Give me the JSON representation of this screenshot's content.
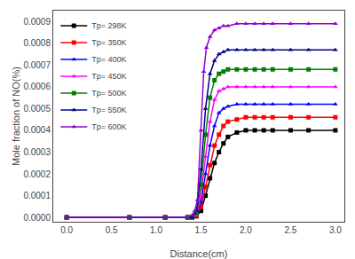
{
  "chart_data": {
    "type": "line",
    "xlabel": "Distance(cm)",
    "ylabel": "Mole fraction of NO(%)",
    "xlim": [
      -0.15,
      3.1
    ],
    "ylim": [
      -2e-05,
      0.00095
    ],
    "xticks": [
      {
        "value": 0.0,
        "label": "0.0"
      },
      0.5,
      {
        "value": 1.0,
        "label": "1.0"
      },
      1.5,
      {
        "value": 2.0,
        "label": "2.0"
      },
      2.5,
      {
        "value": 3.0,
        "label": "3.0"
      }
    ],
    "yticks": [
      {
        "value": 0.0,
        "label": "0.0000"
      },
      {
        "value": 0.0001,
        "label": "0.0001"
      },
      {
        "value": 0.0002,
        "label": "0.0002"
      },
      {
        "value": 0.0003,
        "label": "0.0003"
      },
      {
        "value": 0.0004,
        "label": "0.0004"
      },
      {
        "value": 0.0005,
        "label": "0.0005"
      },
      {
        "value": 0.0006,
        "label": "0.0006"
      },
      {
        "value": 0.0007,
        "label": "0.0007"
      },
      {
        "value": 0.0008,
        "label": "0.0008"
      },
      {
        "value": 0.0009,
        "label": "0.0009"
      }
    ],
    "grid": false,
    "legend": "upper left",
    "series": [
      {
        "name": "Tp= 298K",
        "color": "#000000",
        "marker": "square",
        "x": [
          0.0,
          0.7,
          1.1,
          1.35,
          1.4,
          1.45,
          1.5,
          1.55,
          1.6,
          1.65,
          1.7,
          1.75,
          1.8,
          1.9,
          2.0,
          2.1,
          2.2,
          2.3,
          2.5,
          2.7,
          3.0
        ],
        "values": [
          0.0,
          0.0,
          0.0,
          0.0,
          0.0,
          5e-06,
          3e-05,
          0.0001,
          0.00018,
          0.00025,
          0.0003,
          0.00034,
          0.00037,
          0.00039,
          0.0004,
          0.0004,
          0.0004,
          0.0004,
          0.0004,
          0.0004,
          0.0004
        ]
      },
      {
        "name": "Tp= 350K",
        "color": "#ff0000",
        "marker": "square",
        "x": [
          0.0,
          0.7,
          1.1,
          1.35,
          1.4,
          1.45,
          1.5,
          1.55,
          1.6,
          1.65,
          1.7,
          1.75,
          1.8,
          1.9,
          2.0,
          2.1,
          2.2,
          2.3,
          2.5,
          2.7,
          3.0
        ],
        "values": [
          0.0,
          0.0,
          0.0,
          0.0,
          0.0,
          8e-06,
          5e-05,
          0.00014,
          0.00024,
          0.00033,
          0.00038,
          0.00042,
          0.00044,
          0.00045,
          0.00046,
          0.00046,
          0.00046,
          0.00046,
          0.00046,
          0.00046,
          0.00046
        ]
      },
      {
        "name": "Tp= 400K",
        "color": "#0000ff",
        "marker": "triangle",
        "x": [
          0.0,
          0.7,
          1.1,
          1.35,
          1.4,
          1.45,
          1.5,
          1.55,
          1.6,
          1.65,
          1.7,
          1.75,
          1.8,
          1.9,
          2.0,
          2.1,
          2.2,
          2.3,
          2.5,
          2.7,
          3.0
        ],
        "values": [
          0.0,
          0.0,
          0.0,
          0.0,
          0.0,
          1e-05,
          7e-05,
          0.0002,
          0.00033,
          0.00042,
          0.00048,
          0.0005,
          0.00051,
          0.00052,
          0.00052,
          0.00052,
          0.00052,
          0.00052,
          0.00052,
          0.00052,
          0.00052
        ]
      },
      {
        "name": "Tp= 450K",
        "color": "#ff00ff",
        "marker": "triangle",
        "x": [
          0.0,
          0.7,
          1.1,
          1.35,
          1.4,
          1.45,
          1.5,
          1.55,
          1.6,
          1.65,
          1.7,
          1.75,
          1.8,
          1.9,
          2.0,
          2.1,
          2.2,
          2.3,
          2.5,
          2.7,
          3.0
        ],
        "values": [
          0.0,
          0.0,
          0.0,
          0.0,
          0.0,
          1e-05,
          0.0001,
          0.00028,
          0.00044,
          0.00054,
          0.00058,
          0.00059,
          0.0006,
          0.0006,
          0.0006,
          0.0006,
          0.0006,
          0.0006,
          0.0006,
          0.0006,
          0.0006
        ]
      },
      {
        "name": "Tp= 500K",
        "color": "#008000",
        "marker": "square",
        "x": [
          0.0,
          0.7,
          1.1,
          1.35,
          1.4,
          1.45,
          1.5,
          1.55,
          1.6,
          1.65,
          1.7,
          1.75,
          1.8,
          1.9,
          2.0,
          2.1,
          2.2,
          2.3,
          2.5,
          2.7,
          3.0
        ],
        "values": [
          0.0,
          0.0,
          0.0,
          0.0,
          0.0,
          2e-05,
          0.00015,
          0.00038,
          0.00055,
          0.00063,
          0.00066,
          0.00067,
          0.00068,
          0.00068,
          0.00068,
          0.00068,
          0.00068,
          0.00068,
          0.00068,
          0.00068,
          0.00068
        ]
      },
      {
        "name": "Tp= 550K",
        "color": "#00008b",
        "marker": "triangle",
        "x": [
          0.0,
          0.7,
          1.1,
          1.35,
          1.4,
          1.45,
          1.5,
          1.55,
          1.6,
          1.65,
          1.7,
          1.75,
          1.8,
          1.9,
          2.0,
          2.1,
          2.2,
          2.3,
          2.5,
          2.7,
          3.0
        ],
        "values": [
          0.0,
          0.0,
          0.0,
          0.0,
          0.0,
          3e-05,
          0.00022,
          0.0005,
          0.00066,
          0.00072,
          0.00075,
          0.00076,
          0.00077,
          0.00077,
          0.00077,
          0.00077,
          0.00077,
          0.00077,
          0.00077,
          0.00077,
          0.00077
        ]
      },
      {
        "name": "Tp= 600K",
        "color": "#9400d3",
        "marker": "triangle",
        "x": [
          0.0,
          0.7,
          1.1,
          1.35,
          1.4,
          1.43,
          1.46,
          1.5,
          1.53,
          1.56,
          1.6,
          1.65,
          1.7,
          1.75,
          1.8,
          1.9,
          2.0,
          2.1,
          2.2,
          2.3,
          2.5,
          2.7,
          3.0
        ],
        "values": [
          0.0,
          0.0,
          0.0,
          0.0,
          1e-05,
          3e-05,
          8e-05,
          0.0004,
          0.00067,
          0.00078,
          0.00083,
          0.00086,
          0.00087,
          0.00088,
          0.00088,
          0.00089,
          0.00089,
          0.00089,
          0.00089,
          0.00089,
          0.00089,
          0.00089,
          0.00089
        ]
      }
    ]
  }
}
